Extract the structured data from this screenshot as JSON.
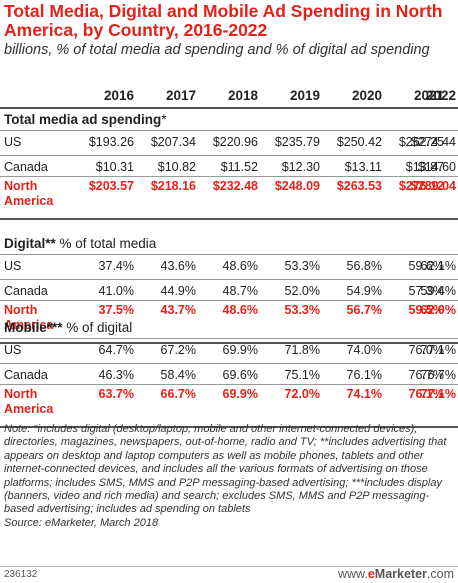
{
  "title": "Total Media, Digital and Mobile Ad Spending in North America, by Country, 2016-2022",
  "subtitle": "billions, % of total media ad spending and % of digital ad spending",
  "chart_data": {
    "type": "table",
    "columns": [
      "2016",
      "2017",
      "2018",
      "2019",
      "2020",
      "2021",
      "2022"
    ],
    "sections": [
      {
        "heading": "Total media ad spending",
        "heading_unit": "*",
        "rows": [
          {
            "label": "US",
            "values": [
              "$193.26",
              "$207.34",
              "$220.96",
              "$235.79",
              "$250.42",
              "$262.25",
              "$274.44"
            ]
          },
          {
            "label": "Canada",
            "values": [
              "$10.31",
              "$10.82",
              "$11.52",
              "$12.30",
              "$13.11",
              "$13.87",
              "$14.60"
            ]
          },
          {
            "label": "North America",
            "values": [
              "$203.57",
              "$218.16",
              "$232.48",
              "$248.09",
              "$263.53",
              "$276.12",
              "$289.04"
            ]
          }
        ]
      },
      {
        "heading": "Digital**",
        "heading_unit": " % of total media",
        "rows": [
          {
            "label": "US",
            "values": [
              "37.4%",
              "43.6%",
              "48.6%",
              "53.3%",
              "56.8%",
              "59.6%",
              "62.1%"
            ]
          },
          {
            "label": "Canada",
            "values": [
              "41.0%",
              "44.9%",
              "48.7%",
              "52.0%",
              "54.9%",
              "57.3%",
              "59.4%"
            ]
          },
          {
            "label": "North America",
            "values": [
              "37.5%",
              "43.7%",
              "48.6%",
              "53.3%",
              "56.7%",
              "59.5%",
              "62.0%"
            ]
          }
        ]
      },
      {
        "heading": "Mobile***",
        "heading_unit": " % of digital",
        "rows": [
          {
            "label": "US",
            "values": [
              "64.7%",
              "67.2%",
              "69.9%",
              "71.8%",
              "74.0%",
              "76.0%",
              "77.1%"
            ]
          },
          {
            "label": "Canada",
            "values": [
              "46.3%",
              "58.4%",
              "69.6%",
              "75.1%",
              "76.1%",
              "76.7%",
              "76.7%"
            ]
          },
          {
            "label": "North America",
            "values": [
              "63.7%",
              "66.7%",
              "69.9%",
              "72.0%",
              "74.1%",
              "76.1%",
              "77.1%"
            ]
          }
        ]
      }
    ]
  },
  "note": "Note: *includes digital (desktop/laptop, mobile and other internet-connected devices), directories, magazines, newspapers, out-of-home, radio and TV; **includes advertising that appears on desktop and laptop computers as well as mobile phones, tablets and other internet-connected devices, and includes all the various formats of advertising on those platforms; includes SMS, MMS and P2P messaging-based advertising; ***includes display (banners, video and rich media) and search; excludes SMS, MMS and P2P messaging-based advertising; includes ad spending on tablets",
  "source": "Source: eMarketer, March 2018",
  "chart_id": "236132",
  "brand": {
    "prefix": "www.",
    "e": "e",
    "name": "Marketer",
    "suffix": ".com"
  },
  "colors": {
    "accent": "#e2231a",
    "text": "#222222",
    "rule": "#999999"
  }
}
